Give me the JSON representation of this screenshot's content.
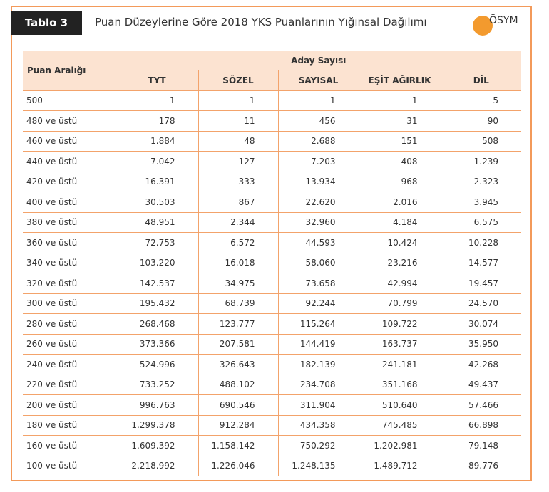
{
  "header": {
    "label": "Tablo 3",
    "title": "Puan Düzeylerine Göre 2018 YKS Puanlarının Yığınsal Dağılımı",
    "logo": "ÖSYM"
  },
  "table": {
    "corner": "Puan Aralığı",
    "group": "Aday Sayısı",
    "columns": [
      "TYT",
      "SÖZEL",
      "SAYISAL",
      "EŞİT AĞIRLIK",
      "DİL"
    ],
    "rows": [
      [
        "500",
        "1",
        "1",
        "1",
        "1",
        "5"
      ],
      [
        "480 ve üstü",
        "178",
        "11",
        "456",
        "31",
        "90"
      ],
      [
        "460 ve üstü",
        "1.884",
        "48",
        "2.688",
        "151",
        "508"
      ],
      [
        "440 ve üstü",
        "7.042",
        "127",
        "7.203",
        "408",
        "1.239"
      ],
      [
        "420 ve üstü",
        "16.391",
        "333",
        "13.934",
        "968",
        "2.323"
      ],
      [
        "400 ve üstü",
        "30.503",
        "867",
        "22.620",
        "2.016",
        "3.945"
      ],
      [
        "380 ve üstü",
        "48.951",
        "2.344",
        "32.960",
        "4.184",
        "6.575"
      ],
      [
        "360 ve üstü",
        "72.753",
        "6.572",
        "44.593",
        "10.424",
        "10.228"
      ],
      [
        "340 ve üstü",
        "103.220",
        "16.018",
        "58.060",
        "23.216",
        "14.577"
      ],
      [
        "320 ve üstü",
        "142.537",
        "34.975",
        "73.658",
        "42.994",
        "19.457"
      ],
      [
        "300 ve üstü",
        "195.432",
        "68.739",
        "92.244",
        "70.799",
        "24.570"
      ],
      [
        "280 ve üstü",
        "268.468",
        "123.777",
        "115.264",
        "109.722",
        "30.074"
      ],
      [
        "260 ve üstü",
        "373.366",
        "207.581",
        "144.419",
        "163.737",
        "35.950"
      ],
      [
        "240 ve üstü",
        "524.996",
        "326.643",
        "182.139",
        "241.181",
        "42.268"
      ],
      [
        "220 ve üstü",
        "733.252",
        "488.102",
        "234.708",
        "351.168",
        "49.437"
      ],
      [
        "200 ve üstü",
        "996.763",
        "690.546",
        "311.904",
        "510.640",
        "57.466"
      ],
      [
        "180 ve üstü",
        "1.299.378",
        "912.284",
        "434.358",
        "745.485",
        "66.898"
      ],
      [
        "160 ve üstü",
        "1.609.392",
        "1.158.142",
        "750.292",
        "1.202.981",
        "79.148"
      ],
      [
        "100 ve üstü",
        "2.218.992",
        "1.226.046",
        "1.248.135",
        "1.489.712",
        "89.776"
      ]
    ]
  }
}
